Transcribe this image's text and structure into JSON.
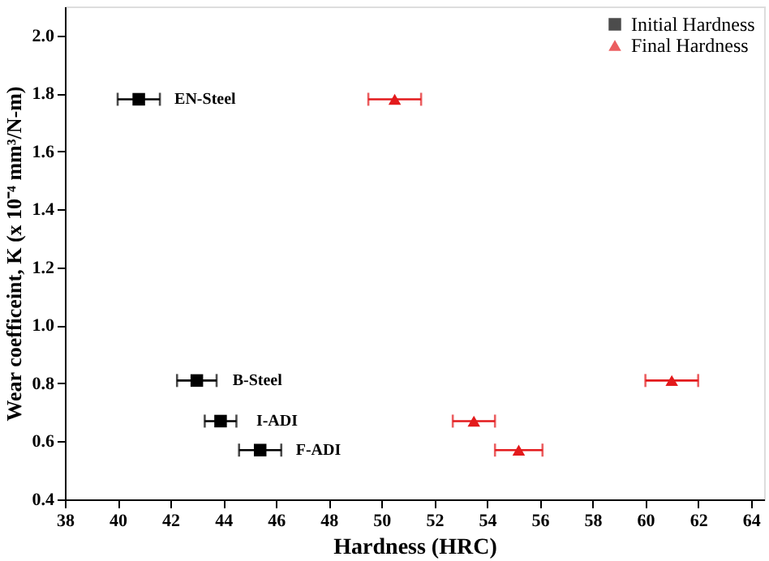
{
  "chart_data": {
    "type": "scatter",
    "xlabel": "Hardness (HRC)",
    "ylabel": "Wear coefficeint, K (x 10⁻⁴ mm³/N-m)",
    "series": [
      {
        "name": "Initial Hardness",
        "color": "#000000",
        "marker": "square",
        "x": [
          40.8,
          43.0,
          43.9,
          45.4
        ],
        "values": [
          1.78,
          0.81,
          0.67,
          0.57
        ],
        "xerrors": [
          0.8,
          0.75,
          0.6,
          0.8
        ]
      },
      {
        "name": "Final Hardness",
        "color": "#e31a1c",
        "marker": "triangle",
        "x": [
          50.5,
          61.0,
          53.5,
          55.2
        ],
        "values": [
          1.78,
          0.81,
          0.67,
          0.57
        ],
        "xerrors": [
          1.0,
          1.0,
          0.8,
          0.9
        ]
      }
    ],
    "annotations": [
      {
        "text": "EN-Steel",
        "x": 40.8,
        "y": 1.78
      },
      {
        "text": "B-Steel",
        "x": 43.0,
        "y": 0.81
      },
      {
        "text": "I-ADI",
        "x": 43.9,
        "y": 0.67
      },
      {
        "text": "F-ADI",
        "x": 45.4,
        "y": 0.57
      }
    ],
    "xlim": [
      38,
      64.5
    ],
    "xticks": [
      38,
      40,
      42,
      44,
      46,
      48,
      50,
      52,
      54,
      56,
      58,
      60,
      62,
      64
    ],
    "ylim": [
      0.4,
      2.1
    ],
    "yticks": [
      0.4,
      0.6,
      0.8,
      {
        "value": 1.0,
        "label": "1.0"
      },
      1.2,
      1.4,
      1.6,
      1.8,
      {
        "value": 2.0,
        "label": "2.0"
      }
    ],
    "grid": false,
    "legend": "top right"
  }
}
